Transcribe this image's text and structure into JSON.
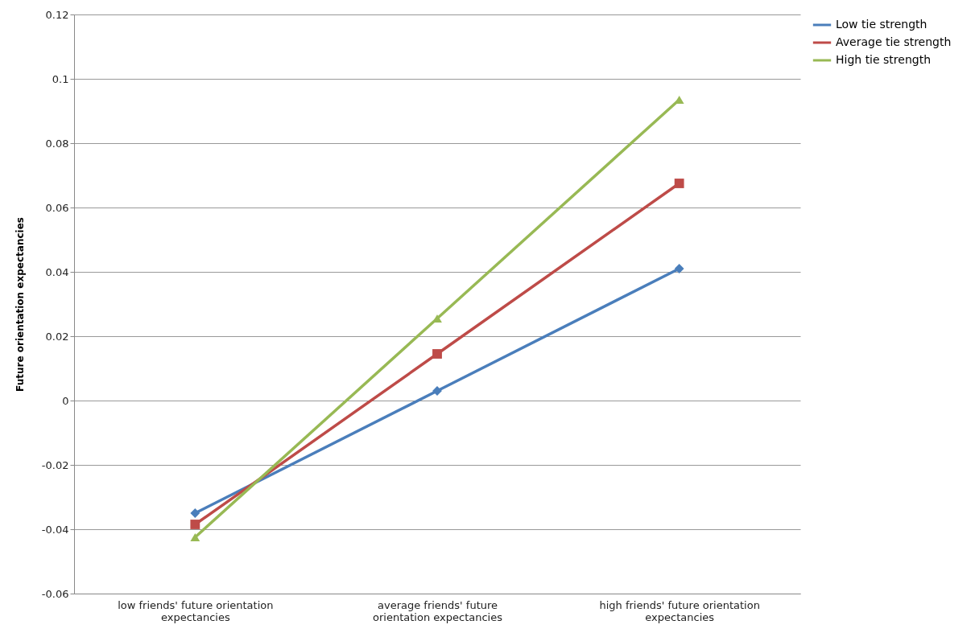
{
  "chart_data": {
    "type": "line",
    "ylabel": "Future orientation expectancies",
    "categories": [
      "low friends' future orientation expectancies",
      "average friends' future orientation expectancies",
      "high friends' future orientation expectancies"
    ],
    "series": [
      {
        "name": "Low tie strength",
        "color": "#4a7ebb",
        "marker": "diamond",
        "values": [
          -0.035,
          0.003,
          0.041
        ]
      },
      {
        "name": "Average tie strength",
        "color": "#be4b48",
        "marker": "square",
        "values": [
          -0.0385,
          0.0145,
          0.0675
        ]
      },
      {
        "name": "High tie strength",
        "color": "#98b954",
        "marker": "triangle",
        "values": [
          -0.0425,
          0.0255,
          0.0935
        ]
      }
    ],
    "ylim": [
      -0.06,
      0.12
    ],
    "yticks": [
      -0.06,
      -0.04,
      -0.02,
      0,
      0.02,
      0.04,
      0.06,
      0.08,
      0.1,
      0.12
    ],
    "grid": "y",
    "legend": "right",
    "line_style": "solid"
  }
}
